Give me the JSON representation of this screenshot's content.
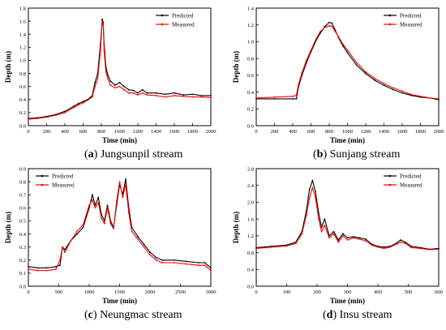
{
  "chart_data": [
    {
      "type": "line",
      "caption": {
        "letter": "a",
        "text": "Jungsunpil stream"
      },
      "xlabel": "Time  (min)",
      "ylabel": "Depth (m)",
      "xlim": [
        0,
        2000
      ],
      "ylim": [
        0,
        1.8
      ],
      "xticks": [
        0,
        200,
        400,
        600,
        800,
        1000,
        1200,
        1400,
        1600,
        1800,
        2000
      ],
      "yticks": [
        0.0,
        0.2,
        0.4,
        0.6,
        0.8,
        1.0,
        1.2,
        1.4,
        1.6,
        1.8
      ],
      "tick_decimals": 1,
      "legend": "top-right",
      "series": [
        {
          "name": "Predicted",
          "color": "#000000",
          "x": [
            0,
            100,
            200,
            300,
            400,
            500,
            550,
            600,
            650,
            700,
            730,
            760,
            790,
            810,
            820,
            830,
            850,
            870,
            900,
            950,
            1000,
            1050,
            1100,
            1150,
            1200,
            1250,
            1300,
            1400,
            1500,
            1600,
            1700,
            1800,
            1900,
            2000
          ],
          "y": [
            0.11,
            0.12,
            0.14,
            0.17,
            0.22,
            0.3,
            0.34,
            0.37,
            0.4,
            0.46,
            0.66,
            0.8,
            1.25,
            1.63,
            1.58,
            1.25,
            0.9,
            0.78,
            0.68,
            0.62,
            0.66,
            0.6,
            0.55,
            0.54,
            0.5,
            0.55,
            0.5,
            0.5,
            0.48,
            0.5,
            0.47,
            0.48,
            0.46,
            0.46
          ]
        },
        {
          "name": "Measured",
          "color": "#ff0000",
          "x": [
            0,
            100,
            200,
            300,
            400,
            500,
            550,
            600,
            650,
            700,
            730,
            760,
            790,
            810,
            820,
            830,
            850,
            870,
            900,
            950,
            1000,
            1050,
            1100,
            1150,
            1200,
            1250,
            1300,
            1400,
            1500,
            1600,
            1700,
            1800,
            1900,
            2000
          ],
          "y": [
            0.1,
            0.11,
            0.13,
            0.16,
            0.2,
            0.28,
            0.32,
            0.35,
            0.39,
            0.44,
            0.6,
            0.72,
            1.15,
            1.6,
            1.55,
            1.15,
            0.82,
            0.72,
            0.62,
            0.58,
            0.6,
            0.55,
            0.5,
            0.5,
            0.47,
            0.5,
            0.47,
            0.46,
            0.44,
            0.46,
            0.45,
            0.44,
            0.44,
            0.43
          ]
        }
      ]
    },
    {
      "type": "line",
      "caption": {
        "letter": "b",
        "text": "Sunjang stream"
      },
      "xlabel": "Time  (min)",
      "ylabel": "Depth (m)",
      "xlim": [
        0,
        2000
      ],
      "ylim": [
        0,
        1.4
      ],
      "xticks": [
        0,
        200,
        400,
        600,
        800,
        1000,
        1200,
        1400,
        1600,
        1800,
        2000
      ],
      "yticks": [
        0.0,
        0.2,
        0.4,
        0.6,
        0.8,
        1.0,
        1.2,
        1.4
      ],
      "tick_decimals": 1,
      "legend": "top-right",
      "series": [
        {
          "name": "Predicted",
          "color": "#000000",
          "x": [
            0,
            200,
            400,
            440,
            460,
            500,
            550,
            600,
            650,
            700,
            750,
            800,
            830,
            860,
            900,
            950,
            1000,
            1100,
            1200,
            1300,
            1400,
            1500,
            1600,
            1700,
            1800,
            1900,
            2000
          ],
          "y": [
            0.32,
            0.32,
            0.32,
            0.32,
            0.45,
            0.6,
            0.75,
            0.88,
            1.0,
            1.1,
            1.18,
            1.23,
            1.22,
            1.15,
            1.05,
            0.95,
            0.87,
            0.72,
            0.62,
            0.54,
            0.48,
            0.43,
            0.39,
            0.36,
            0.34,
            0.33,
            0.31
          ]
        },
        {
          "name": "Measured",
          "color": "#ff0000",
          "x": [
            0,
            200,
            400,
            440,
            460,
            500,
            550,
            600,
            650,
            700,
            750,
            800,
            830,
            860,
            900,
            950,
            1000,
            1100,
            1200,
            1300,
            1400,
            1500,
            1600,
            1700,
            1800,
            1900,
            2000
          ],
          "y": [
            0.33,
            0.34,
            0.35,
            0.36,
            0.48,
            0.63,
            0.78,
            0.9,
            1.02,
            1.12,
            1.17,
            1.19,
            1.18,
            1.13,
            1.06,
            0.97,
            0.9,
            0.75,
            0.64,
            0.56,
            0.5,
            0.45,
            0.41,
            0.37,
            0.35,
            0.33,
            0.32
          ]
        }
      ]
    },
    {
      "type": "line",
      "caption": {
        "letter": "c",
        "text": "Neungmac stream"
      },
      "xlabel": "Time  (min)",
      "ylabel": "Depth (m)",
      "xlim": [
        0,
        3000
      ],
      "ylim": [
        0,
        0.9
      ],
      "xticks": [
        0,
        500,
        1000,
        1500,
        2000,
        2500,
        3000
      ],
      "yticks": [
        0.0,
        0.1,
        0.2,
        0.3,
        0.4,
        0.5,
        0.6,
        0.7,
        0.8,
        0.9
      ],
      "tick_decimals": 1,
      "legend": "top-left",
      "series": [
        {
          "name": "Predicted",
          "color": "#000000",
          "x": [
            0,
            150,
            300,
            450,
            520,
            560,
            600,
            700,
            800,
            900,
            1000,
            1050,
            1100,
            1150,
            1200,
            1250,
            1300,
            1350,
            1400,
            1450,
            1500,
            1550,
            1600,
            1650,
            1700,
            1800,
            1900,
            2000,
            2100,
            2200,
            2400,
            2600,
            2800,
            2900,
            3000
          ],
          "y": [
            0.15,
            0.14,
            0.14,
            0.15,
            0.16,
            0.3,
            0.28,
            0.35,
            0.4,
            0.45,
            0.6,
            0.7,
            0.62,
            0.68,
            0.55,
            0.5,
            0.62,
            0.5,
            0.45,
            0.62,
            0.78,
            0.7,
            0.82,
            0.6,
            0.45,
            0.38,
            0.32,
            0.26,
            0.22,
            0.2,
            0.2,
            0.19,
            0.18,
            0.18,
            0.14
          ]
        },
        {
          "name": "Measured",
          "color": "#ff0000",
          "x": [
            0,
            150,
            300,
            450,
            520,
            560,
            600,
            700,
            800,
            900,
            1000,
            1050,
            1100,
            1150,
            1200,
            1250,
            1300,
            1350,
            1400,
            1450,
            1500,
            1550,
            1600,
            1650,
            1700,
            1800,
            1900,
            2000,
            2100,
            2200,
            2400,
            2600,
            2800,
            2900,
            3000
          ],
          "y": [
            0.13,
            0.12,
            0.12,
            0.13,
            0.2,
            0.3,
            0.26,
            0.35,
            0.42,
            0.47,
            0.62,
            0.66,
            0.6,
            0.64,
            0.52,
            0.48,
            0.6,
            0.48,
            0.44,
            0.65,
            0.8,
            0.68,
            0.78,
            0.56,
            0.42,
            0.36,
            0.3,
            0.24,
            0.2,
            0.18,
            0.18,
            0.17,
            0.16,
            0.16,
            0.12
          ]
        }
      ]
    },
    {
      "type": "line",
      "caption": {
        "letter": "d",
        "text": "Insu stream"
      },
      "xlabel": "Time  (min)",
      "ylabel": "Depth (m)",
      "xlim": [
        0,
        600
      ],
      "ylim": [
        0,
        2.8
      ],
      "xticks": [
        0,
        100,
        200,
        300,
        400,
        500,
        600
      ],
      "yticks": [
        0.0,
        0.4,
        0.8,
        1.2,
        1.6,
        2.0,
        2.4,
        2.8
      ],
      "tick_decimals": 1,
      "legend": "top-right",
      "series": [
        {
          "name": "Predicted",
          "color": "#000000",
          "x": [
            0,
            50,
            100,
            130,
            150,
            165,
            175,
            185,
            195,
            205,
            215,
            225,
            240,
            255,
            270,
            285,
            300,
            320,
            340,
            360,
            380,
            400,
            420,
            440,
            460,
            475,
            490,
            510,
            540,
            570,
            600
          ],
          "y": [
            0.92,
            0.95,
            0.98,
            1.05,
            1.3,
            1.8,
            2.3,
            2.52,
            2.25,
            1.75,
            1.4,
            1.6,
            1.2,
            1.3,
            1.1,
            1.25,
            1.15,
            1.18,
            1.15,
            1.12,
            1.0,
            0.95,
            0.93,
            0.95,
            1.02,
            1.1,
            1.05,
            0.95,
            0.92,
            0.88,
            0.9
          ]
        },
        {
          "name": "Measured",
          "color": "#ff0000",
          "x": [
            0,
            50,
            100,
            130,
            150,
            165,
            175,
            185,
            195,
            205,
            215,
            225,
            240,
            255,
            270,
            285,
            300,
            320,
            340,
            360,
            380,
            400,
            420,
            440,
            460,
            475,
            490,
            510,
            540,
            570,
            600
          ],
          "y": [
            0.9,
            0.93,
            0.96,
            1.02,
            1.25,
            1.7,
            2.1,
            2.35,
            2.1,
            1.6,
            1.3,
            1.45,
            1.15,
            1.25,
            1.05,
            1.2,
            1.1,
            1.15,
            1.12,
            1.08,
            0.98,
            0.93,
            0.9,
            0.93,
            1.0,
            1.05,
            1.02,
            0.92,
            0.9,
            0.87,
            0.88
          ]
        }
      ]
    }
  ]
}
